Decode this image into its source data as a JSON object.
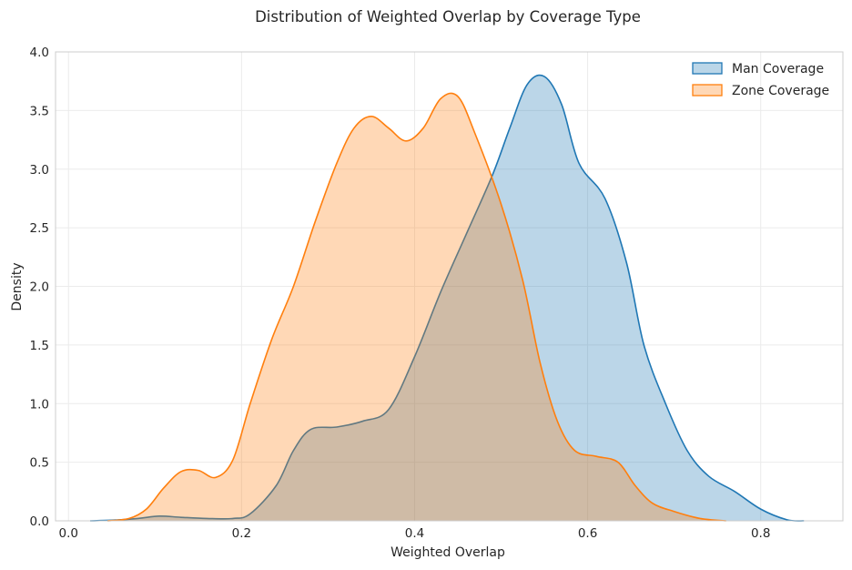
{
  "chart_data": {
    "type": "area",
    "title": "Distribution of Weighted Overlap by Coverage Type",
    "xlabel": "Weighted Overlap",
    "ylabel": "Density",
    "xlim": [
      -0.015,
      0.895
    ],
    "ylim": [
      0,
      4.0
    ],
    "xticks": [
      0.0,
      0.2,
      0.4,
      0.6,
      0.8
    ],
    "xtick_labels": [
      "0.0",
      "0.2",
      "0.4",
      "0.6",
      "0.8"
    ],
    "yticks": [
      0.0,
      0.5,
      1.0,
      1.5,
      2.0,
      2.5,
      3.0,
      3.5,
      4.0
    ],
    "ytick_labels": [
      "0.0",
      "0.5",
      "1.0",
      "1.5",
      "2.0",
      "2.5",
      "3.0",
      "3.5",
      "4.0"
    ],
    "grid": true,
    "legend": "top-right",
    "series": [
      {
        "name": "Man Coverage",
        "color": "#1f77b4",
        "fill": "#1f77b4",
        "points": [
          [
            0.025,
            0.0
          ],
          [
            0.05,
            0.005
          ],
          [
            0.08,
            0.02
          ],
          [
            0.105,
            0.04
          ],
          [
            0.13,
            0.03
          ],
          [
            0.16,
            0.02
          ],
          [
            0.19,
            0.02
          ],
          [
            0.21,
            0.06
          ],
          [
            0.24,
            0.3
          ],
          [
            0.26,
            0.6
          ],
          [
            0.28,
            0.78
          ],
          [
            0.31,
            0.8
          ],
          [
            0.34,
            0.85
          ],
          [
            0.37,
            0.95
          ],
          [
            0.4,
            1.4
          ],
          [
            0.43,
            1.95
          ],
          [
            0.46,
            2.45
          ],
          [
            0.49,
            2.95
          ],
          [
            0.51,
            3.35
          ],
          [
            0.53,
            3.72
          ],
          [
            0.55,
            3.79
          ],
          [
            0.57,
            3.55
          ],
          [
            0.59,
            3.05
          ],
          [
            0.62,
            2.75
          ],
          [
            0.645,
            2.2
          ],
          [
            0.665,
            1.5
          ],
          [
            0.69,
            1.0
          ],
          [
            0.715,
            0.6
          ],
          [
            0.74,
            0.38
          ],
          [
            0.77,
            0.25
          ],
          [
            0.8,
            0.1
          ],
          [
            0.83,
            0.01
          ],
          [
            0.85,
            0.0
          ]
        ]
      },
      {
        "name": "Zone Coverage",
        "color": "#ff7f0e",
        "fill": "#ffbb78",
        "points": [
          [
            0.045,
            0.0
          ],
          [
            0.07,
            0.02
          ],
          [
            0.09,
            0.1
          ],
          [
            0.11,
            0.28
          ],
          [
            0.13,
            0.42
          ],
          [
            0.15,
            0.43
          ],
          [
            0.17,
            0.37
          ],
          [
            0.19,
            0.52
          ],
          [
            0.21,
            1.0
          ],
          [
            0.235,
            1.55
          ],
          [
            0.26,
            2.0
          ],
          [
            0.285,
            2.55
          ],
          [
            0.31,
            3.05
          ],
          [
            0.33,
            3.35
          ],
          [
            0.35,
            3.45
          ],
          [
            0.37,
            3.35
          ],
          [
            0.39,
            3.24
          ],
          [
            0.41,
            3.35
          ],
          [
            0.43,
            3.6
          ],
          [
            0.45,
            3.62
          ],
          [
            0.47,
            3.3
          ],
          [
            0.5,
            2.7
          ],
          [
            0.525,
            2.05
          ],
          [
            0.545,
            1.35
          ],
          [
            0.565,
            0.85
          ],
          [
            0.585,
            0.6
          ],
          [
            0.61,
            0.55
          ],
          [
            0.635,
            0.5
          ],
          [
            0.655,
            0.3
          ],
          [
            0.675,
            0.15
          ],
          [
            0.7,
            0.08
          ],
          [
            0.73,
            0.02
          ],
          [
            0.76,
            0.0
          ]
        ]
      }
    ]
  }
}
